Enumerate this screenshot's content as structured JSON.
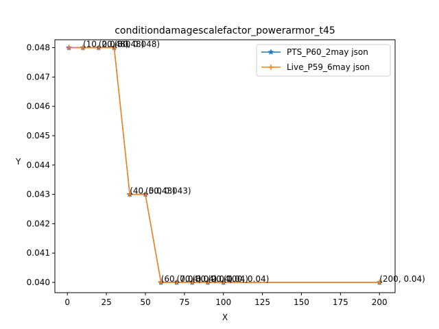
{
  "chart_data": {
    "type": "line",
    "title": "conditiondamagescalefactor_powerarmor_t45",
    "xlabel": "X",
    "ylabel": "Y",
    "xlim": [
      -8,
      210
    ],
    "ylim": [
      0.03965,
      0.04827
    ],
    "x_ticks": [
      0,
      25,
      50,
      75,
      100,
      125,
      150,
      175,
      200
    ],
    "y_ticks": [
      0.04,
      0.041,
      0.042,
      0.043,
      0.044,
      0.045,
      0.046,
      0.047,
      0.048
    ],
    "y_tick_labels": [
      "0.040",
      "0.041",
      "0.042",
      "0.043",
      "0.044",
      "0.045",
      "0.046",
      "0.047",
      "0.048"
    ],
    "grid": false,
    "legend_position": "upper right",
    "series": [
      {
        "name": "PTS_P60_2may json",
        "color": "#1f77b4",
        "marker": "star",
        "x": [
          1,
          10,
          20,
          30,
          40,
          50,
          60,
          70,
          80,
          90,
          100,
          200
        ],
        "y": [
          0.048,
          0.048,
          0.048,
          0.048,
          0.043,
          0.043,
          0.04,
          0.04,
          0.04,
          0.04,
          0.04,
          0.04
        ]
      },
      {
        "name": "Live_P59_6may json",
        "color": "#ff7f0e",
        "marker": "plus",
        "x": [
          1,
          10,
          20,
          30,
          40,
          50,
          60,
          70,
          80,
          90,
          100,
          200
        ],
        "y": [
          0.048,
          0.048,
          0.048,
          0.048,
          0.043,
          0.043,
          0.04,
          0.04,
          0.04,
          0.04,
          0.04,
          0.04
        ]
      }
    ],
    "annotations": [
      {
        "x": 10,
        "y": 0.048,
        "text": "(10, 0.048)"
      },
      {
        "x": 20,
        "y": 0.048,
        "text": "(20, 0.048)"
      },
      {
        "x": 30,
        "y": 0.048,
        "text": "(30, 0.048)"
      },
      {
        "x": 40,
        "y": 0.043,
        "text": "(40, 0.043)"
      },
      {
        "x": 50,
        "y": 0.043,
        "text": "(50, 0.043)"
      },
      {
        "x": 60,
        "y": 0.04,
        "text": "(60, 0.04)"
      },
      {
        "x": 70,
        "y": 0.04,
        "text": "(70, 0.04)"
      },
      {
        "x": 80,
        "y": 0.04,
        "text": "(80, 0.04)"
      },
      {
        "x": 90,
        "y": 0.04,
        "text": "(90, 0.04)"
      },
      {
        "x": 100,
        "y": 0.04,
        "text": "(100, 0.04)"
      },
      {
        "x": 200,
        "y": 0.04,
        "text": "(200, 0.04)"
      }
    ]
  }
}
